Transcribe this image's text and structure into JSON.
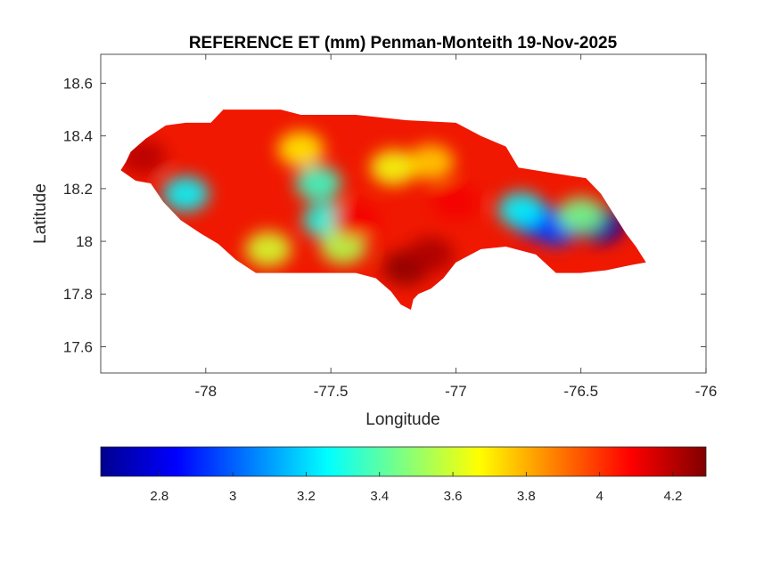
{
  "chart_data": {
    "type": "contour-map",
    "title": "REFERENCE ET (mm) Penman-Monteith 19-Nov-2025",
    "xlabel": "Longitude",
    "ylabel": "Latitude",
    "xlim": [
      -78.42,
      -76.0
    ],
    "ylim": [
      17.5,
      18.71
    ],
    "xticks": [
      -78,
      -77.5,
      -77,
      -76.5,
      -76
    ],
    "xtick_labels": [
      "-78",
      "-77.5",
      "-77",
      "-76.5",
      "-76"
    ],
    "yticks": [
      17.6,
      17.8,
      18.0,
      18.2,
      18.4,
      18.6
    ],
    "ytick_labels": [
      "17.6",
      "17.8",
      "18",
      "18.2",
      "18.4",
      "18.6"
    ],
    "colorbar": {
      "location": "south",
      "colormap": "jet",
      "clim": [
        2.64,
        4.29
      ],
      "ticks": [
        2.8,
        3.0,
        3.2,
        3.4,
        3.6,
        3.8,
        4.0,
        4.2
      ],
      "tick_labels": [
        "2.8",
        "3",
        "3.2",
        "3.4",
        "3.6",
        "3.8",
        "4",
        "4.2"
      ]
    },
    "grid": false,
    "island_outline": [
      [
        -78.34,
        18.27
      ],
      [
        -78.32,
        18.3
      ],
      [
        -78.3,
        18.34
      ],
      [
        -78.24,
        18.39
      ],
      [
        -78.16,
        18.44
      ],
      [
        -78.08,
        18.45
      ],
      [
        -77.98,
        18.45
      ],
      [
        -77.93,
        18.5
      ],
      [
        -77.7,
        18.5
      ],
      [
        -77.62,
        18.48
      ],
      [
        -77.4,
        18.48
      ],
      [
        -77.2,
        18.46
      ],
      [
        -77.0,
        18.45
      ],
      [
        -76.9,
        18.4
      ],
      [
        -76.8,
        18.36
      ],
      [
        -76.75,
        18.28
      ],
      [
        -76.62,
        18.26
      ],
      [
        -76.48,
        18.24
      ],
      [
        -76.42,
        18.18
      ],
      [
        -76.38,
        18.12
      ],
      [
        -76.32,
        18.03
      ],
      [
        -76.28,
        17.98
      ],
      [
        -76.26,
        17.95
      ],
      [
        -76.24,
        17.92
      ],
      [
        -76.3,
        17.91
      ],
      [
        -76.4,
        17.89
      ],
      [
        -76.5,
        17.88
      ],
      [
        -76.6,
        17.88
      ],
      [
        -76.68,
        17.95
      ],
      [
        -76.8,
        17.98
      ],
      [
        -76.9,
        17.97
      ],
      [
        -77.0,
        17.92
      ],
      [
        -77.05,
        17.86
      ],
      [
        -77.1,
        17.82
      ],
      [
        -77.15,
        17.8
      ],
      [
        -77.17,
        17.78
      ],
      [
        -77.18,
        17.74
      ],
      [
        -77.22,
        17.76
      ],
      [
        -77.26,
        17.81
      ],
      [
        -77.32,
        17.86
      ],
      [
        -77.4,
        17.88
      ],
      [
        -77.5,
        17.88
      ],
      [
        -77.6,
        17.88
      ],
      [
        -77.72,
        17.88
      ],
      [
        -77.8,
        17.88
      ],
      [
        -77.88,
        17.93
      ],
      [
        -77.95,
        17.99
      ],
      [
        -78.02,
        18.03
      ],
      [
        -78.1,
        18.08
      ],
      [
        -78.17,
        18.15
      ],
      [
        -78.22,
        18.22
      ],
      [
        -78.28,
        18.23
      ]
    ],
    "field_features": [
      {
        "lon": -77.55,
        "lat": 18.22,
        "value": 3.35
      },
      {
        "lon": -77.52,
        "lat": 18.08,
        "value": 3.3
      },
      {
        "lon": -77.45,
        "lat": 17.98,
        "value": 3.55
      },
      {
        "lon": -78.08,
        "lat": 18.18,
        "value": 3.25
      },
      {
        "lon": -77.75,
        "lat": 17.97,
        "value": 3.6
      },
      {
        "lon": -77.25,
        "lat": 18.28,
        "value": 3.65
      },
      {
        "lon": -77.1,
        "lat": 18.3,
        "value": 3.75
      },
      {
        "lon": -77.62,
        "lat": 18.35,
        "value": 3.7
      },
      {
        "lon": -76.68,
        "lat": 18.08,
        "value": 2.85
      },
      {
        "lon": -76.6,
        "lat": 18.05,
        "value": 2.95
      },
      {
        "lon": -76.42,
        "lat": 18.06,
        "value": 2.7
      },
      {
        "lon": -76.74,
        "lat": 18.12,
        "value": 3.25
      },
      {
        "lon": -76.5,
        "lat": 18.1,
        "value": 3.45
      },
      {
        "lon": -77.2,
        "lat": 17.9,
        "value": 4.27
      },
      {
        "lon": -77.1,
        "lat": 17.95,
        "value": 4.22
      },
      {
        "lon": -78.25,
        "lat": 18.32,
        "value": 4.2
      },
      {
        "lon": -77.4,
        "lat": 18.08,
        "value": 4.1
      },
      {
        "lon": -77.0,
        "lat": 18.15,
        "value": 4.1
      }
    ]
  }
}
